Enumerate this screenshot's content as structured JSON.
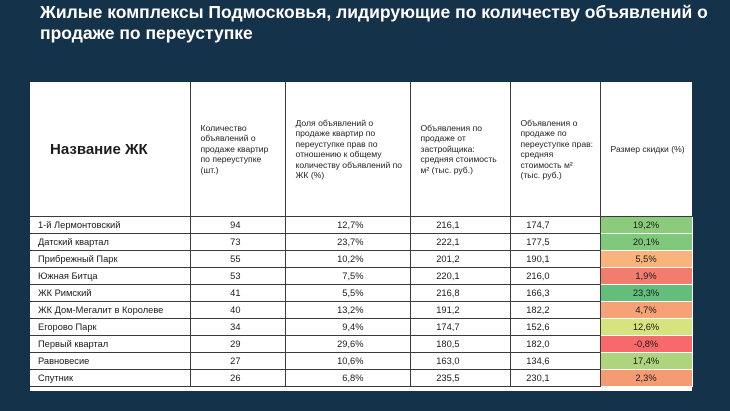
{
  "title": "Жилые комплексы Подмосковья, лидирующие по количеству объявлений о продаже по переуступке",
  "colors": {
    "background": "#15324b",
    "discount_high": "#63be7b",
    "discount_mid": "#d7e37f",
    "discount_low": "#f8a977",
    "discount_negative": "#f8696b"
  },
  "chart_data": {
    "type": "table",
    "columns": [
      "Название ЖК",
      "Количество объявлений о продаже квартир по переуступке (шт.)",
      "Доля объявлений о продаже квартир по переуступке прав по отношению к общему количеству объявлений по ЖК (%)",
      "Объявления по продаже от застройщика: средняя стоимость м² (тыс. руб.)",
      "Объявления о продаже по переуступке прав: средняя стоимость м² (тыс. руб.)",
      "Размер скидки (%)"
    ],
    "rows": [
      [
        "1-й Лермонтовский",
        "94",
        "12,7%",
        "216,1",
        "174,7",
        "19,2%"
      ],
      [
        "Датский квартал",
        "73",
        "23,7%",
        "222,1",
        "177,5",
        "20,1%"
      ],
      [
        "Прибрежный Парк",
        "55",
        "10,2%",
        "201,2",
        "190,1",
        "5,5%"
      ],
      [
        "Южная Битца",
        "53",
        "7,5%",
        "220,1",
        "216,0",
        "1,9%"
      ],
      [
        "ЖК Римский",
        "41",
        "5,5%",
        "216,8",
        "166,3",
        "23,3%"
      ],
      [
        "ЖК Дом-Мегалит в Королеве",
        "40",
        "13,2%",
        "191,2",
        "182,2",
        "4,7%"
      ],
      [
        "Егорово Парк",
        "34",
        "9,4%",
        "174,7",
        "152,6",
        "12,6%"
      ],
      [
        "Первый квартал",
        "29",
        "29,6%",
        "180,5",
        "182,0",
        "-0,8%"
      ],
      [
        "Равновесие",
        "27",
        "10,6%",
        "163,0",
        "134,6",
        "17,4%"
      ],
      [
        "Спутник",
        "26",
        "6,8%",
        "235,5",
        "230,1",
        "2,3%"
      ]
    ],
    "discount_colors": [
      "#8cca7c",
      "#7fc87c",
      "#f8b47a",
      "#f27d6e",
      "#63be7b",
      "#f6a176",
      "#d7e37f",
      "#f8696b",
      "#aed57e",
      "#f49b74"
    ]
  }
}
